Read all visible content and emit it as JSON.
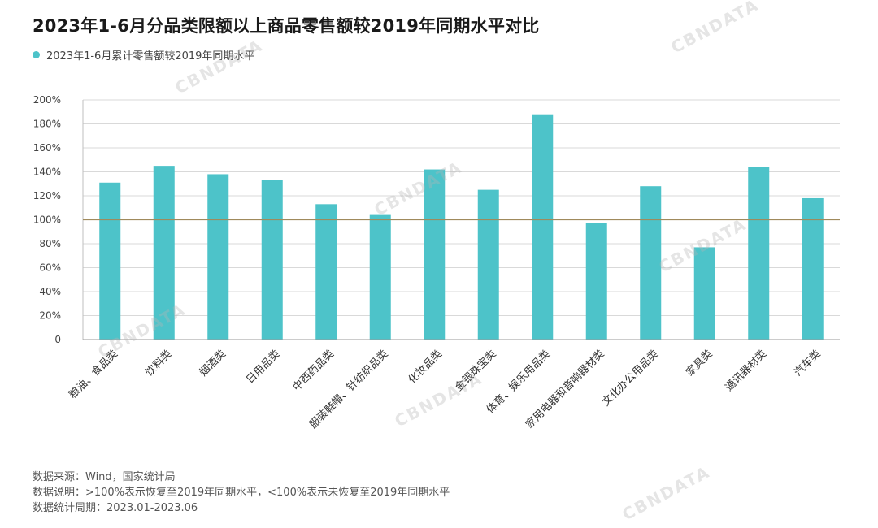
{
  "title": "2023年1-6月分品类限额以上商品零售额较2019年同期水平对比",
  "legend": {
    "label": "2023年1-6月累计零售额较2019年同期水平",
    "color": "#4dc3c9"
  },
  "watermark_text": "CBNDATA",
  "chart_data": {
    "type": "bar",
    "title": "2023年1-6月分品类限额以上商品零售额较2019年同期水平对比",
    "xlabel": "",
    "ylabel": "",
    "ylim": [
      0,
      200
    ],
    "yticks": [
      0,
      20,
      40,
      60,
      80,
      100,
      120,
      140,
      160,
      180,
      200
    ],
    "ytick_labels": [
      "0",
      "20%",
      "40%",
      "60%",
      "80%",
      "100%",
      "120%",
      "140%",
      "160%",
      "180%",
      "200%"
    ],
    "reference_line": 100,
    "categories": [
      "粮油、食品类",
      "饮料类",
      "烟酒类",
      "日用品类",
      "中西药品类",
      "服装鞋帽、针纺织品类",
      "化妆品类",
      "金银珠宝类",
      "体育、娱乐用品类",
      "家用电器和音响器材类",
      "文化办公用品类",
      "家具类",
      "通讯器材类",
      "汽车类"
    ],
    "values": [
      131,
      145,
      138,
      133,
      113,
      104,
      142,
      125,
      188,
      97,
      128,
      77,
      144,
      118
    ],
    "series_name": "2023年1-6月累计零售额较2019年同期水平",
    "bar_color": "#4dc3c9",
    "grid": true
  },
  "notes": {
    "source": "数据来源：Wind，国家统计局",
    "explanation": "数据说明：>100%表示恢复至2019年同期水平，<100%表示未恢复至2019年同期水平",
    "period": "数据统计周期：2023.01-2023.06"
  }
}
